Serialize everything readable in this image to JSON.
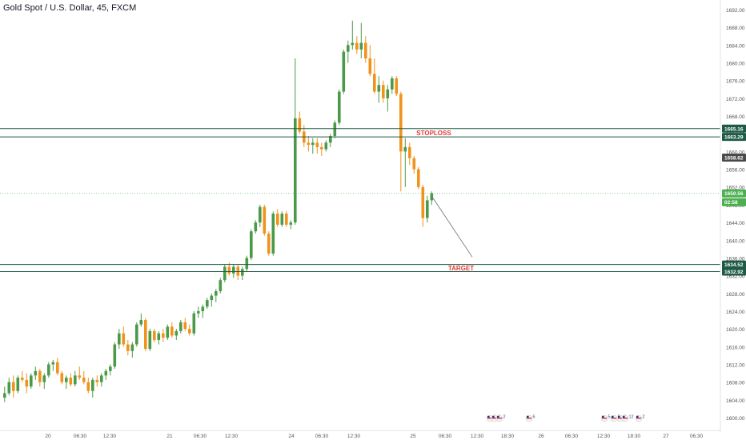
{
  "header": {
    "title": "Gold Spot / U.S. Dollar, 45, FXCM"
  },
  "colors": {
    "up": "#4c9a49",
    "down": "#f0921c",
    "level_line": "#1e5a46",
    "level_label_bg": "#1e5a46",
    "annotation_text": "#e53935",
    "last_price_bg": "#4caf50",
    "prev_close_bg": "#4a4a4a",
    "axis_text": "#555555",
    "background": "#ffffff"
  },
  "annotations": {
    "stoploss_label": "STOPLOSS",
    "target_label": "TARGET"
  },
  "levels": [
    {
      "name": "stoploss-upper",
      "price": 1665.16,
      "label": "1665.16"
    },
    {
      "name": "stoploss-lower",
      "price": 1663.29,
      "label": "1663.29"
    },
    {
      "name": "target-upper",
      "price": 1634.52,
      "label": "1634.52"
    },
    {
      "name": "target-lower",
      "price": 1632.92,
      "label": "1632.92"
    }
  ],
  "price_markers": {
    "prev_close": {
      "price": 1658.62,
      "label": "1658.62"
    },
    "last_price": {
      "price": 1650.56,
      "label": "1650.56"
    },
    "countdown": "02:58"
  },
  "x_axis_labels": [
    "20",
    "06:30",
    "12:30",
    "21",
    "06:30",
    "12:30",
    "24",
    "06:30",
    "12:30",
    "25",
    "06:30",
    "12:30",
    "18:30",
    "26",
    "06:30",
    "12:30",
    "18:30",
    "27",
    "06:30"
  ],
  "events": [
    "6",
    "8",
    "2",
    "6",
    "5",
    "2",
    "2",
    "12",
    "2"
  ],
  "chart_data": {
    "type": "candlestick",
    "title": "Gold Spot / U.S. Dollar, 45, FXCM",
    "y_axis_ticks": [
      1600,
      1604,
      1608,
      1612,
      1616,
      1620,
      1624,
      1628,
      1632,
      1636,
      1640,
      1644,
      1648,
      1652,
      1656,
      1660,
      1664,
      1668,
      1672,
      1676,
      1680,
      1684,
      1688,
      1692
    ],
    "ylim": [
      1598.5,
      1694.5
    ],
    "grid": false,
    "candles": [
      [
        1604.5,
        1607,
        1603.5,
        1605.5
      ],
      [
        1605.5,
        1609,
        1605,
        1608
      ],
      [
        1608,
        1609.5,
        1604.5,
        1606
      ],
      [
        1606,
        1609.5,
        1605.5,
        1609
      ],
      [
        1609,
        1610.5,
        1608,
        1608.5
      ],
      [
        1608.5,
        1610,
        1605.5,
        1607
      ],
      [
        1607,
        1610,
        1606.5,
        1609.5
      ],
      [
        1609.5,
        1611.5,
        1608.5,
        1610.5
      ],
      [
        1610.5,
        1611,
        1607,
        1608
      ],
      [
        1608,
        1610,
        1606.5,
        1609.5
      ],
      [
        1609.5,
        1612.5,
        1609,
        1612
      ],
      [
        1612,
        1613,
        1610.5,
        1612.5
      ],
      [
        1612.5,
        1613.5,
        1609.5,
        1610
      ],
      [
        1610,
        1610.5,
        1607.5,
        1608
      ],
      [
        1608,
        1609.5,
        1606.5,
        1609
      ],
      [
        1609,
        1610,
        1607,
        1607.5
      ],
      [
        1607.5,
        1610.5,
        1607,
        1609.5
      ],
      [
        1609.5,
        1611.5,
        1608.5,
        1609
      ],
      [
        1609,
        1610.5,
        1607.5,
        1608
      ],
      [
        1608,
        1609,
        1605.5,
        1606
      ],
      [
        1606,
        1609,
        1604.5,
        1608.5
      ],
      [
        1608.5,
        1609.5,
        1607,
        1608
      ],
      [
        1608,
        1610,
        1607,
        1609.5
      ],
      [
        1609.5,
        1611,
        1608.5,
        1610.5
      ],
      [
        1610.5,
        1612,
        1609.5,
        1611.5
      ],
      [
        1611.5,
        1617,
        1611,
        1616.5
      ],
      [
        1616.5,
        1620,
        1615.5,
        1619
      ],
      [
        1619,
        1620.5,
        1616,
        1616.5
      ],
      [
        1616.5,
        1617.5,
        1614,
        1615
      ],
      [
        1615,
        1617,
        1613.5,
        1616.5
      ],
      [
        1616.5,
        1621.5,
        1616,
        1621
      ],
      [
        1621,
        1623.5,
        1620.5,
        1622
      ],
      [
        1622,
        1622.5,
        1615,
        1615.5
      ],
      [
        1615.5,
        1620,
        1615,
        1619.5
      ],
      [
        1619.5,
        1620,
        1617,
        1617.5
      ],
      [
        1617.5,
        1619.5,
        1616.5,
        1619
      ],
      [
        1619,
        1620,
        1617,
        1618
      ],
      [
        1618,
        1621,
        1617.5,
        1620.5
      ],
      [
        1620.5,
        1621.5,
        1618,
        1618.5
      ],
      [
        1618.5,
        1620,
        1617.5,
        1619.5
      ],
      [
        1619.5,
        1622,
        1619,
        1621.5
      ],
      [
        1621.5,
        1622.5,
        1619.5,
        1620
      ],
      [
        1620,
        1621,
        1618.5,
        1619
      ],
      [
        1619,
        1624,
        1618.5,
        1623.5
      ],
      [
        1623.5,
        1625,
        1622.5,
        1624
      ],
      [
        1624,
        1625.5,
        1622.5,
        1625
      ],
      [
        1625,
        1627,
        1624.5,
        1626.5
      ],
      [
        1626.5,
        1628,
        1625,
        1627.5
      ],
      [
        1627.5,
        1629,
        1626,
        1628.5
      ],
      [
        1628.5,
        1631.5,
        1628,
        1631
      ],
      [
        1631,
        1634.5,
        1630.5,
        1634
      ],
      [
        1634,
        1635,
        1632,
        1632.5
      ],
      [
        1632.5,
        1634.5,
        1631.5,
        1634
      ],
      [
        1634,
        1634.5,
        1631,
        1632
      ],
      [
        1632,
        1634,
        1631,
        1633.5
      ],
      [
        1633.5,
        1636.5,
        1633,
        1636
      ],
      [
        1636,
        1642.5,
        1635.5,
        1642
      ],
      [
        1642,
        1644.5,
        1641.5,
        1644
      ],
      [
        1644,
        1648,
        1643,
        1647.5
      ],
      [
        1647.5,
        1648,
        1641,
        1641.5
      ],
      [
        1641.5,
        1642,
        1636.5,
        1637
      ],
      [
        1637,
        1646.5,
        1636.5,
        1646
      ],
      [
        1646,
        1647,
        1643,
        1643.5
      ],
      [
        1643.5,
        1646.5,
        1643,
        1646
      ],
      [
        1646,
        1646.5,
        1643,
        1643.5
      ],
      [
        1643.5,
        1644.5,
        1642.5,
        1644
      ],
      [
        1644,
        1681,
        1643.5,
        1667.5
      ],
      [
        1667.5,
        1669,
        1664,
        1664.5
      ],
      [
        1664.5,
        1666,
        1661,
        1662
      ],
      [
        1662,
        1663.5,
        1660,
        1661.5
      ],
      [
        1661.5,
        1663,
        1659.5,
        1662
      ],
      [
        1662,
        1663,
        1659.5,
        1661
      ],
      [
        1661,
        1662,
        1659,
        1660.5
      ],
      [
        1660.5,
        1662.5,
        1660,
        1662
      ],
      [
        1662,
        1664,
        1661,
        1663.5
      ],
      [
        1663.5,
        1667,
        1663,
        1666.5
      ],
      [
        1666.5,
        1674,
        1666,
        1673.5
      ],
      [
        1673.5,
        1683,
        1673,
        1682.5
      ],
      [
        1682.5,
        1685,
        1680,
        1684
      ],
      [
        1684,
        1689.5,
        1683,
        1684.5
      ],
      [
        1684.5,
        1686,
        1682,
        1683
      ],
      [
        1683,
        1689,
        1681,
        1684.5
      ],
      [
        1684.5,
        1686,
        1680,
        1681
      ],
      [
        1681,
        1684,
        1677,
        1677.5
      ],
      [
        1677.5,
        1681,
        1673,
        1673.5
      ],
      [
        1673.5,
        1677,
        1671,
        1675
      ],
      [
        1675,
        1676,
        1671,
        1672
      ],
      [
        1672,
        1675,
        1669,
        1674
      ],
      [
        1674,
        1677,
        1673,
        1676.5
      ],
      [
        1676.5,
        1677,
        1672.5,
        1673
      ],
      [
        1673,
        1673.5,
        1651,
        1660
      ],
      [
        1660,
        1663,
        1652,
        1661
      ],
      [
        1661,
        1662,
        1657,
        1658.5
      ],
      [
        1658.5,
        1659,
        1655,
        1656
      ],
      [
        1656,
        1656.5,
        1651.5,
        1652
      ],
      [
        1652,
        1652.5,
        1643,
        1645
      ],
      [
        1645,
        1650,
        1644,
        1649
      ],
      [
        1649,
        1651,
        1648,
        1650.56
      ]
    ]
  }
}
